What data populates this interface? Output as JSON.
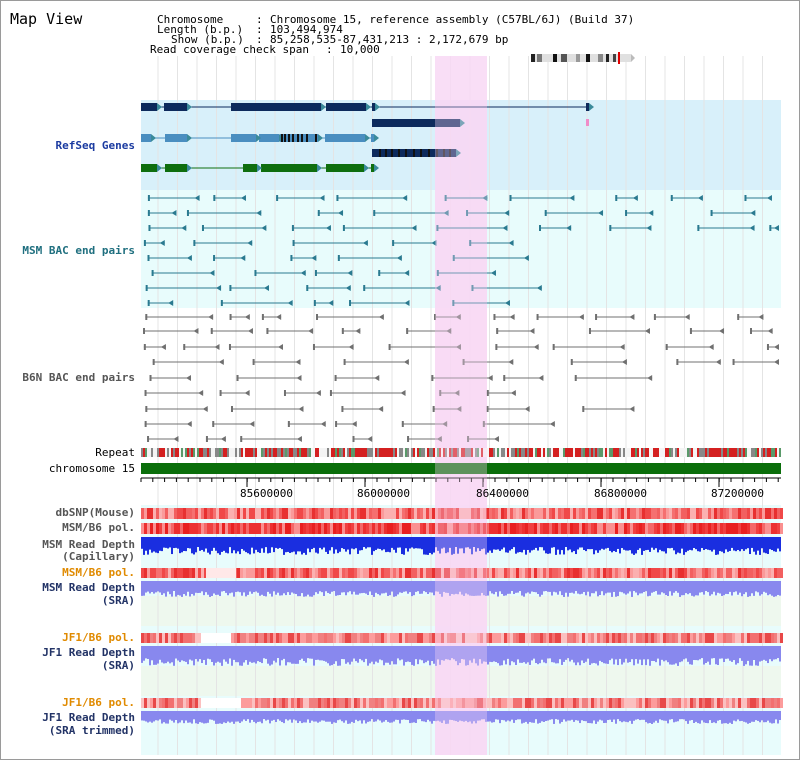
{
  "title": "Map View",
  "header": {
    "chromosome_label": "Chromosome",
    "chromosome_value": "Chromosome 15, reference assembly (C57BL/6J) (Build 37)",
    "length_label": "Length (b.p.)",
    "length_value": "103,494,974",
    "show_label": "Show (b.p.)",
    "show_value": "85,258,535-87,431,213 : 2,172,679 bp",
    "coverage_label": "Read coverage check span",
    "coverage_value": "10,000"
  },
  "tracks": {
    "refseq": "RefSeq Genes",
    "msm_bac": "MSM BAC end pairs",
    "b6n_bac": "B6N BAC end pairs",
    "repeat": "Repeat",
    "chromosome": "chromosome 15",
    "dbsnp": "dbSNP(Mouse)",
    "msm_b6_pol_1": "MSM/B6 pol.",
    "msm_read_depth_cap_1": "MSM Read Depth",
    "msm_read_depth_cap_2": "(Capillary)",
    "msm_b6_pol_2": "MSM/B6 pol.",
    "msm_read_depth_sra_1": "MSM Read Depth",
    "msm_read_depth_sra_2": "(SRA)",
    "jf1_b6_pol_1": "JF1/B6 pol.",
    "jf1_read_depth_1": "JF1 Read Depth",
    "jf1_read_depth_2": "(SRA)",
    "jf1_b6_pol_2": "JF1/B6 pol.",
    "jf1_trim_1": "JF1 Read Depth",
    "jf1_trim_2": "(SRA trimmed)"
  },
  "axis_ticks": [
    "85600000",
    "86000000",
    "86400000",
    "86800000",
    "87200000"
  ],
  "colors": {
    "highlight": "#f8d8f4",
    "refseq_bg": "#d8f0fa",
    "track_bg": "#e8fcfc",
    "gene_dark": "#0d2a5c",
    "gene_mid": "#4a8ec0",
    "gene_green": "#0e6e0e",
    "msm_bac": "#2a7a90",
    "b6n_bac": "#707070",
    "chromosome": "#0a6e0a",
    "depth_cap": "#1a2ee0",
    "depth_sra": "#8888ee"
  }
}
